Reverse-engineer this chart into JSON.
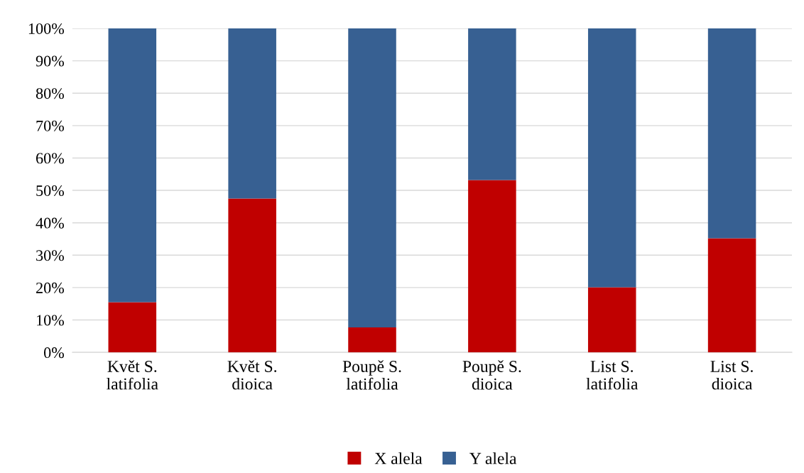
{
  "chart_data": {
    "type": "bar",
    "stacked": true,
    "categories": [
      "Květ S.\nlatifolia",
      "Květ S.\ndioica",
      "Poupě S.\nlatifolia",
      "Poupě S.\ndioica",
      "List S.\nlatifolia",
      "List S.\ndioica"
    ],
    "series": [
      {
        "name": "X alela",
        "color": "#c00000",
        "values": [
          15.5,
          47.5,
          7.7,
          53.2,
          20.1,
          35.2
        ]
      },
      {
        "name": "Y alela",
        "color": "#376092",
        "values": [
          84.5,
          52.5,
          92.3,
          46.8,
          79.9,
          64.8
        ]
      }
    ],
    "ylim": [
      0,
      100
    ],
    "yticks": [
      {
        "value": 0,
        "label": "0%"
      },
      {
        "value": 10,
        "label": "10%"
      },
      {
        "value": 20,
        "label": "20%"
      },
      {
        "value": 30,
        "label": "30%"
      },
      {
        "value": 40,
        "label": "40%"
      },
      {
        "value": 50,
        "label": "50%"
      },
      {
        "value": 60,
        "label": "60%"
      },
      {
        "value": 70,
        "label": "70%"
      },
      {
        "value": 80,
        "label": "80%"
      },
      {
        "value": 90,
        "label": "90%"
      },
      {
        "value": 100,
        "label": "100%"
      }
    ],
    "grid": "y",
    "legend": "bottom"
  }
}
